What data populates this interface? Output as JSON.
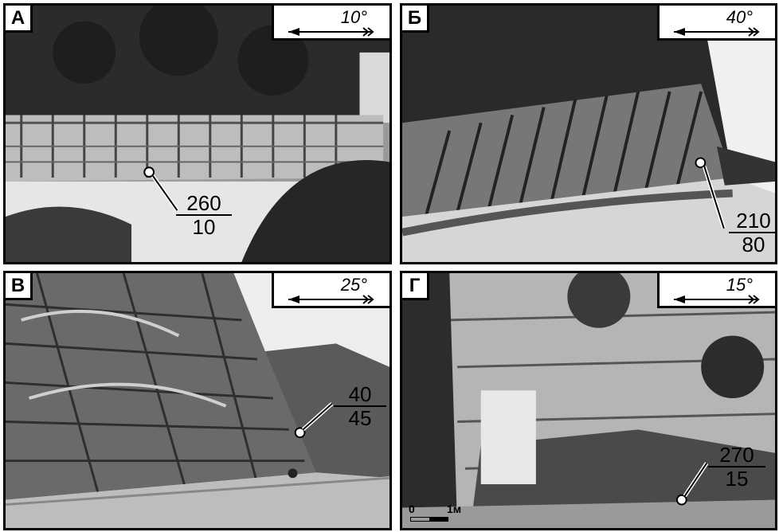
{
  "panels": [
    {
      "letter": "А",
      "direction": "10°",
      "strike": "260",
      "dip": "10"
    },
    {
      "letter": "Б",
      "direction": "40°",
      "strike": "210",
      "dip": "80"
    },
    {
      "letter": "В",
      "direction": "25°",
      "strike": "40",
      "dip": "45"
    },
    {
      "letter": "Г",
      "direction": "15°",
      "strike": "270",
      "dip": "15"
    }
  ],
  "scale": {
    "zero": "0",
    "unit": "1м"
  }
}
